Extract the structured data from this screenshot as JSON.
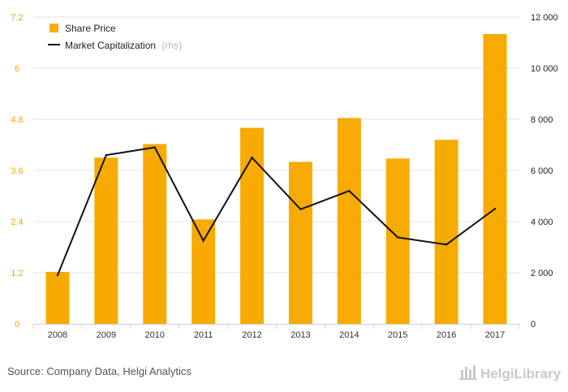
{
  "chart_data": {
    "type": "bar",
    "categories": [
      "2008",
      "2009",
      "2010",
      "2011",
      "2012",
      "2013",
      "2014",
      "2015",
      "2016",
      "2017"
    ],
    "series": [
      {
        "name": "Share Price",
        "type": "bar",
        "axis": "left",
        "values": [
          1.22,
          3.9,
          4.22,
          2.45,
          4.6,
          3.8,
          4.83,
          3.88,
          4.32,
          6.8
        ]
      },
      {
        "name": "Market Capitalization",
        "name_suffix": "(rhs)",
        "type": "line",
        "axis": "right",
        "values": [
          1900,
          6600,
          6900,
          3250,
          6500,
          4480,
          5200,
          3380,
          3100,
          4500
        ]
      }
    ],
    "ylim_left": [
      0,
      7.2
    ],
    "yticks_left": [
      "0",
      "1.2",
      "2.4",
      "3.6",
      "4.8",
      "6",
      "7.2"
    ],
    "ylim_right": [
      0,
      12000
    ],
    "yticks_right": [
      "0",
      "2 000",
      "4 000",
      "6 000",
      "8 000",
      "10 000",
      "12 000"
    ],
    "grid": true,
    "legend_position": "top-left",
    "colors": {
      "bar": "#f7ab00",
      "line": "#111111",
      "grid": "#e3e3e3",
      "left_axis_text": "#f0a500"
    }
  },
  "footer": {
    "source": "Source: Company Data, Helgi Analytics",
    "logo": "HelgiLibrary"
  }
}
